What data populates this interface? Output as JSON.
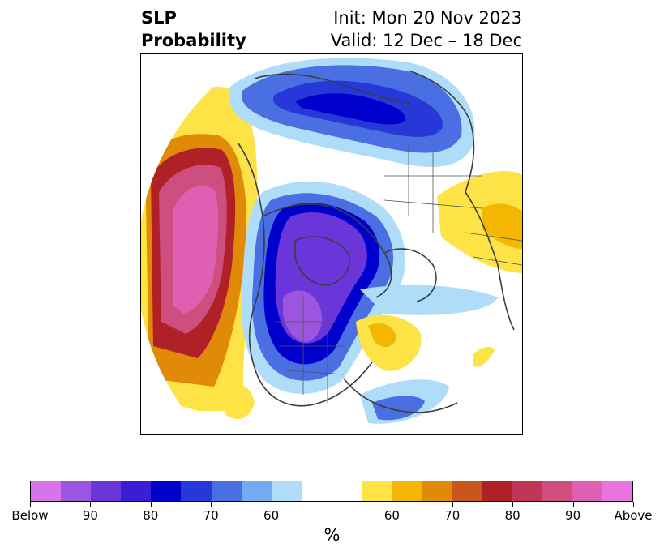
{
  "title": {
    "left_line1": "SLP",
    "left_line2": "Probability",
    "right_line1": "Init: Mon 20 Nov 2023",
    "right_line2": "Valid: 12 Dec – 18 Dec"
  },
  "colorbar": {
    "colors": [
      "#d774e9",
      "#9b55e1",
      "#6b36d9",
      "#3b1dd4",
      "#0000cc",
      "#2638d7",
      "#4a6fe3",
      "#73aaf0",
      "#aedcf9",
      "#ffffff",
      "#ffffff",
      "#fde346",
      "#f3b602",
      "#e08a08",
      "#c7571a",
      "#b02127",
      "#c13656",
      "#cf4e80",
      "#df60b3",
      "#e974de"
    ],
    "tick_labels": [
      "Below",
      "90",
      "80",
      "70",
      "60",
      "60",
      "70",
      "80",
      "90",
      "Above"
    ],
    "units": "%"
  },
  "legend_colors": {
    "below_strong": "#6b36d9",
    "below_core": "#0000cc",
    "below_mid": "#4a6fe3",
    "below_light": "#aedcf9",
    "above_light": "#fde346",
    "above_mid": "#f3b602",
    "above_orange": "#e08a08",
    "above_red": "#b02127",
    "above_magenta": "#df60b3"
  }
}
